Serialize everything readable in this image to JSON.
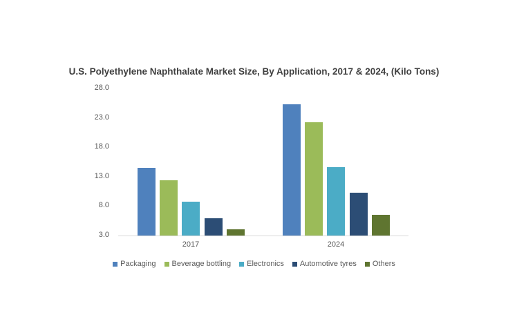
{
  "chart_data": {
    "type": "bar",
    "title": "U.S. Polyethylene Naphthalate Market Size, By Application, 2017 & 2024, (Kilo Tons)",
    "xlabel": "",
    "ylabel": "",
    "categories": [
      "2017",
      "2024"
    ],
    "yticks": [
      "28.0",
      "23.0",
      "18.0",
      "13.0",
      "8.0",
      "3.0"
    ],
    "ylim": [
      3.0,
      28.0
    ],
    "grid": false,
    "legend_position": "bottom",
    "series": [
      {
        "name": "Packaging",
        "color": "#4f81bd",
        "values": [
          14.5,
          25.3
        ]
      },
      {
        "name": "Beverage bottling",
        "color": "#9bbb59",
        "values": [
          12.4,
          22.3
        ]
      },
      {
        "name": "Electronics",
        "color": "#4bacc6",
        "values": [
          8.8,
          14.6
        ]
      },
      {
        "name": "Automotive tyres",
        "color": "#2c4d75",
        "values": [
          5.9,
          10.3
        ]
      },
      {
        "name": "Others",
        "color": "#5f7530",
        "values": [
          4.1,
          6.5
        ]
      }
    ]
  }
}
